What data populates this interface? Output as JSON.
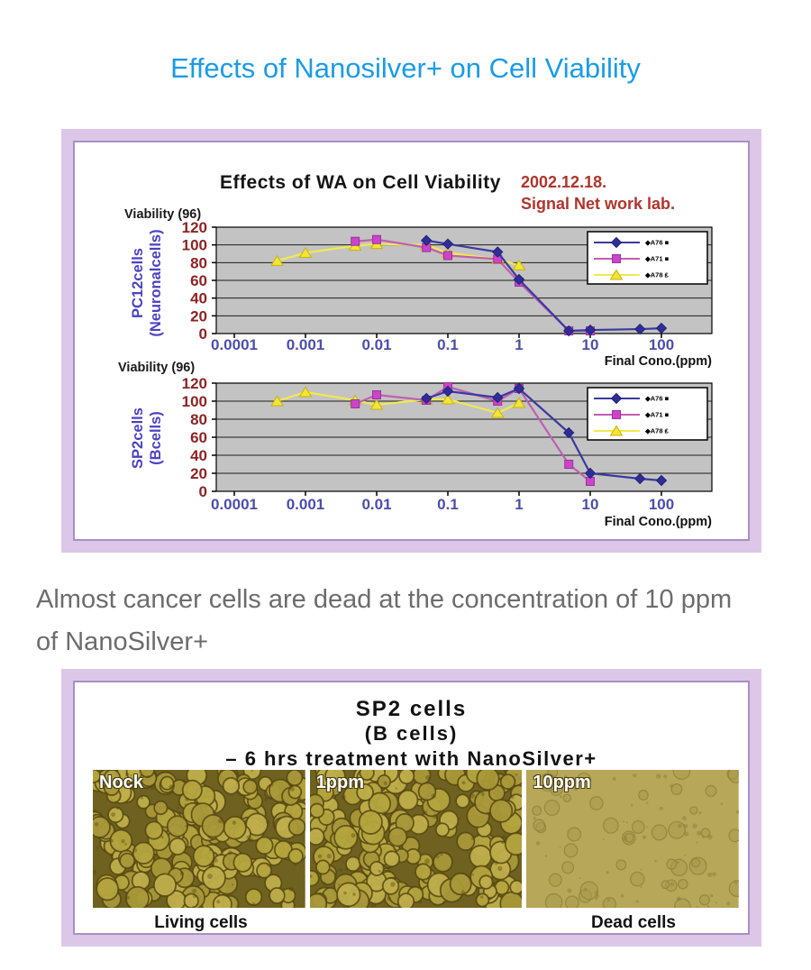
{
  "title": {
    "text": "Effects of Nanosilver+ on Cell Viability",
    "color": "#1b9be6"
  },
  "chart_section": {
    "heading": "Effects of WA on Cell Viability",
    "date": "2002.12.18.",
    "lab": "Signal Net work lab.",
    "date_color": "#ae352c",
    "frame_color": "#dcc7e8",
    "frame_line_color": "#a890c5"
  },
  "chart_data": [
    {
      "type": "line",
      "title": "Effects of WA on Cell Viability",
      "group_line1": "PC12cells",
      "group_line2": "(Neuronalcells)",
      "ylabel": "Viability (96)",
      "xlabel": "Final Cono.(ppm)",
      "x_scale": "log",
      "x_ticks": [
        "0.0001",
        "0.001",
        "0.01",
        "0.1",
        "1",
        "10",
        "100"
      ],
      "y_ticks": [
        0,
        20,
        40,
        60,
        80,
        100,
        120
      ],
      "ylim": [
        0,
        120
      ],
      "grid": true,
      "plot_bg": "#c3c3c3",
      "legend_position": "top-right",
      "series": [
        {
          "name": "◆A76 ■",
          "marker": "diamond",
          "line": "#3a3aa0",
          "fill": "#2e2e96",
          "edge": "#22227a",
          "points": [
            [
              0.05,
              105
            ],
            [
              0.1,
              101
            ],
            [
              0.5,
              92
            ],
            [
              1,
              61
            ],
            [
              5,
              3
            ],
            [
              10,
              4
            ],
            [
              50,
              5
            ],
            [
              100,
              6
            ]
          ]
        },
        {
          "name": "◆A71 ■",
          "marker": "square",
          "line": "#c05fb0",
          "fill": "#cc44cc",
          "edge": "#993399",
          "points": [
            [
              0.005,
              104
            ],
            [
              0.01,
              106
            ],
            [
              0.05,
              97
            ],
            [
              0.1,
              88
            ],
            [
              0.5,
              84
            ],
            [
              1,
              58
            ],
            [
              5,
              3
            ],
            [
              10,
              3
            ]
          ]
        },
        {
          "name": "◆A78 ₤",
          "marker": "triangle",
          "line": "#f2e94e",
          "fill": "#f4e33c",
          "edge": "#c7b500",
          "points": [
            [
              0.0004,
              82
            ],
            [
              0.001,
              91
            ],
            [
              0.005,
              99
            ],
            [
              0.01,
              101
            ],
            [
              0.05,
              100
            ],
            [
              0.1,
              91
            ],
            [
              0.5,
              84
            ],
            [
              1,
              77
            ]
          ]
        }
      ]
    },
    {
      "type": "line",
      "title": "Effects of WA on Cell Viability",
      "group_line1": "SP2cells",
      "group_line2": "(Bcells)",
      "ylabel": "Viability (96)",
      "xlabel": "Final Cono.(ppm)",
      "x_scale": "log",
      "x_ticks": [
        "0.0001",
        "0.001",
        "0.01",
        "0.1",
        "1",
        "10",
        "100"
      ],
      "y_ticks": [
        0,
        20,
        40,
        60,
        80,
        100,
        120
      ],
      "ylim": [
        0,
        120
      ],
      "grid": true,
      "plot_bg": "#c3c3c3",
      "legend_position": "top-right",
      "series": [
        {
          "name": "◆A76 ■",
          "marker": "diamond",
          "line": "#3a3aa0",
          "fill": "#2e2e96",
          "edge": "#22227a",
          "points": [
            [
              0.05,
              103
            ],
            [
              0.1,
              111
            ],
            [
              0.5,
              104
            ],
            [
              1,
              114
            ],
            [
              5,
              65
            ],
            [
              10,
              20
            ],
            [
              50,
              14
            ],
            [
              100,
              12
            ]
          ]
        },
        {
          "name": "◆A71 ■",
          "marker": "square",
          "line": "#c05fb0",
          "fill": "#cc44cc",
          "edge": "#993399",
          "points": [
            [
              0.005,
              97
            ],
            [
              0.01,
              107
            ],
            [
              0.05,
              101
            ],
            [
              0.1,
              116
            ],
            [
              0.5,
              100
            ],
            [
              1,
              114
            ],
            [
              5,
              30
            ],
            [
              10,
              11
            ]
          ]
        },
        {
          "name": "◆A78 ₤",
          "marker": "triangle",
          "line": "#f2e94e",
          "fill": "#f4e33c",
          "edge": "#c7b500",
          "points": [
            [
              0.0004,
              100
            ],
            [
              0.001,
              110
            ],
            [
              0.005,
              101
            ],
            [
              0.01,
              96
            ],
            [
              0.05,
              102
            ],
            [
              0.1,
              102
            ],
            [
              0.5,
              87
            ],
            [
              1,
              98
            ]
          ]
        }
      ]
    }
  ],
  "statement": {
    "lines": [
      "Almost cancer cells are dead at the concentration of 10 ppm",
      "of NanoSilver+"
    ],
    "color": "#6c6c6c"
  },
  "micro_section": {
    "title_lines": [
      "SP2 cells",
      "(B cells)",
      "– 6 hrs treatment with NanoSilver+"
    ],
    "panels": [
      {
        "label": "Nock",
        "type": "dense"
      },
      {
        "label": "1ppm",
        "type": "dense"
      },
      {
        "label": "10ppm",
        "type": "sparse"
      }
    ],
    "caption_left": "Living cells",
    "caption_right": "Dead cells",
    "palette": {
      "dense_bg": "#6f6120",
      "dense_cell": [
        "#b4a43e",
        "#a99839",
        "#bfae4b"
      ],
      "dense_edge": "#554810",
      "sparse_bg": "#b7a758",
      "sparse_cell": "#ab9b4e",
      "sparse_edge": "#8d7d3c",
      "label_color": "#ffffff"
    }
  }
}
